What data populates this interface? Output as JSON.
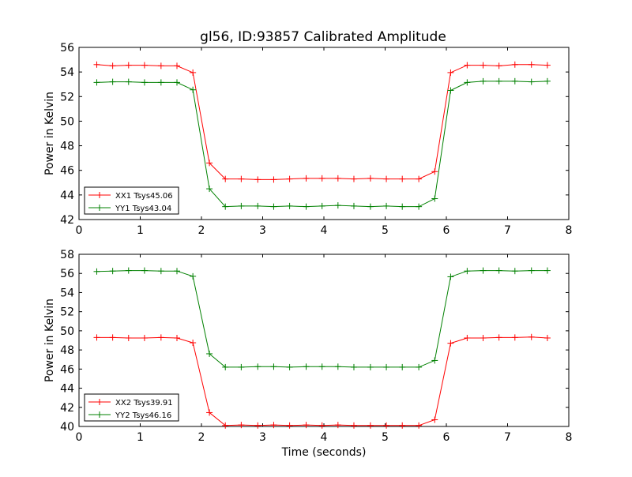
{
  "figure_title": "gl56, ID:93857 Calibrated Amplitude",
  "chart_data": [
    {
      "type": "line",
      "title": "gl56, ID:93857 Calibrated Amplitude",
      "xlabel": "",
      "ylabel": "Power in Kelvin",
      "xlim": [
        0,
        8
      ],
      "ylim": [
        42,
        56
      ],
      "xticks": [
        0,
        1,
        2,
        3,
        4,
        5,
        6,
        7,
        8
      ],
      "yticks": [
        42,
        44,
        46,
        48,
        50,
        52,
        54,
        56
      ],
      "grid": false,
      "legend_position": "lower-left",
      "x": [
        0.29,
        0.55,
        0.81,
        1.07,
        1.34,
        1.6,
        1.86,
        2.13,
        2.39,
        2.65,
        2.92,
        3.18,
        3.44,
        3.71,
        3.97,
        4.23,
        4.49,
        4.76,
        5.02,
        5.28,
        5.55,
        5.81,
        6.07,
        6.34,
        6.6,
        6.86,
        7.12,
        7.39,
        7.65
      ],
      "series": [
        {
          "name": "XX1 Tsys45.06",
          "color": "#ff0000",
          "values": [
            54.6,
            54.5,
            54.55,
            54.55,
            54.5,
            54.5,
            53.95,
            46.6,
            45.3,
            45.3,
            45.25,
            45.25,
            45.3,
            45.35,
            45.35,
            45.35,
            45.3,
            45.35,
            45.3,
            45.3,
            45.3,
            45.9,
            53.95,
            54.55,
            54.55,
            54.5,
            54.6,
            54.6,
            54.55
          ]
        },
        {
          "name": "YY1 Tsys43.04",
          "color": "#008000",
          "values": [
            53.15,
            53.2,
            53.2,
            53.15,
            53.15,
            53.15,
            52.55,
            44.5,
            43.05,
            43.1,
            43.1,
            43.05,
            43.1,
            43.05,
            43.1,
            43.15,
            43.1,
            43.05,
            43.1,
            43.05,
            43.05,
            43.7,
            52.5,
            53.15,
            53.25,
            53.25,
            53.25,
            53.2,
            53.25
          ]
        }
      ]
    },
    {
      "type": "line",
      "title": "",
      "xlabel": "Time (seconds)",
      "ylabel": "Power in Kelvin",
      "xlim": [
        0,
        8
      ],
      "ylim": [
        40,
        58
      ],
      "xticks": [
        0,
        1,
        2,
        3,
        4,
        5,
        6,
        7,
        8
      ],
      "yticks": [
        40,
        42,
        44,
        46,
        48,
        50,
        52,
        54,
        56,
        58
      ],
      "grid": false,
      "legend_position": "lower-left",
      "x": [
        0.29,
        0.55,
        0.81,
        1.07,
        1.34,
        1.6,
        1.86,
        2.13,
        2.39,
        2.65,
        2.92,
        3.18,
        3.44,
        3.71,
        3.97,
        4.23,
        4.49,
        4.76,
        5.02,
        5.28,
        5.55,
        5.81,
        6.07,
        6.34,
        6.6,
        6.86,
        7.12,
        7.39,
        7.65
      ],
      "series": [
        {
          "name": "XX2 Tsys39.91",
          "color": "#ff0000",
          "values": [
            49.3,
            49.3,
            49.25,
            49.25,
            49.3,
            49.25,
            48.75,
            41.45,
            40.1,
            40.15,
            40.1,
            40.15,
            40.1,
            40.15,
            40.1,
            40.15,
            40.1,
            40.1,
            40.1,
            40.1,
            40.1,
            40.7,
            48.7,
            49.25,
            49.25,
            49.3,
            49.3,
            49.35,
            49.25
          ]
        },
        {
          "name": "YY2 Tsys46.16",
          "color": "#008000",
          "values": [
            56.2,
            56.25,
            56.3,
            56.3,
            56.25,
            56.25,
            55.7,
            47.6,
            46.2,
            46.2,
            46.25,
            46.25,
            46.2,
            46.25,
            46.25,
            46.25,
            46.2,
            46.2,
            46.2,
            46.2,
            46.2,
            46.9,
            55.65,
            56.25,
            56.3,
            56.3,
            56.25,
            56.3,
            56.3
          ]
        }
      ]
    }
  ]
}
